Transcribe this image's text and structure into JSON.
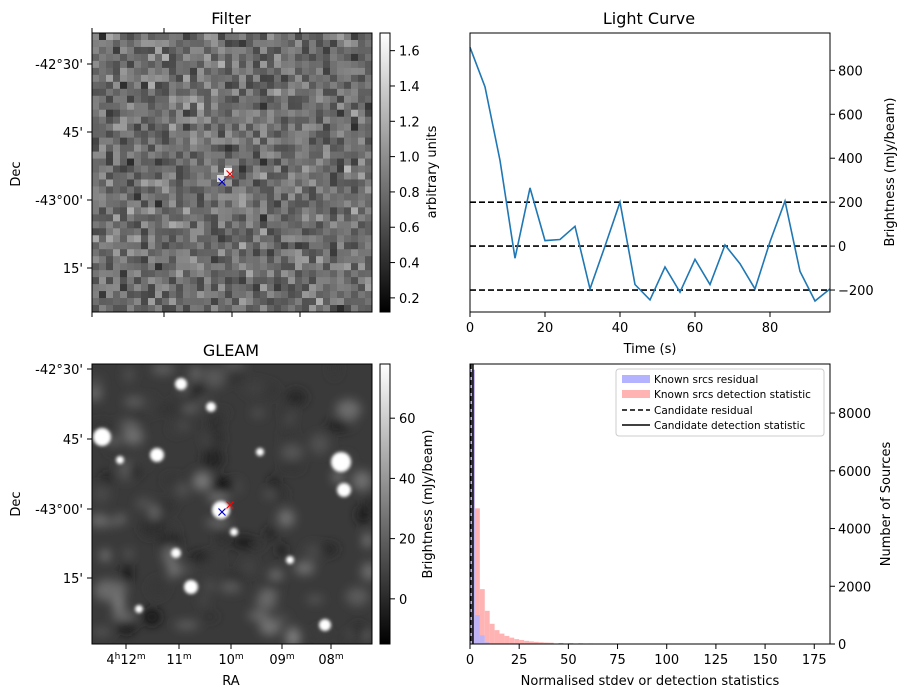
{
  "chart_data": [
    {
      "type": "heatmap",
      "title": "Filter",
      "ylabel": "Dec",
      "y_ticks": [
        "-42°30'",
        "45'",
        "-43°00'",
        "15'"
      ],
      "colorbar": {
        "label": "arbitrary units",
        "ticks": [
          "0.2",
          "0.4",
          "0.6",
          "0.8",
          "1.0",
          "1.2",
          "1.4",
          "1.6"
        ],
        "range": [
          0.12,
          1.7
        ],
        "colormap": "gray"
      },
      "markers": [
        {
          "symbol": "x",
          "color": "#ff0000"
        },
        {
          "symbol": "x",
          "color": "#0000cc"
        }
      ]
    },
    {
      "type": "line",
      "title": "Light Curve",
      "xlabel": "Time (s)",
      "ylabel": "Brightness (mJy/beam)",
      "xlim": [
        0,
        96
      ],
      "ylim": [
        -300,
        970
      ],
      "x_ticks": [
        "0",
        "20",
        "40",
        "60",
        "80"
      ],
      "y_ticks": [
        "-200",
        "0",
        "200",
        "400",
        "600",
        "800"
      ],
      "series": [
        {
          "color": "#1f77b4",
          "x": [
            0,
            4,
            8,
            12,
            16,
            20,
            24,
            28,
            32,
            36,
            40,
            44,
            48,
            52,
            56,
            60,
            64,
            68,
            72,
            76,
            80,
            84,
            88,
            92,
            96
          ],
          "values": [
            905,
            725,
            390,
            -55,
            265,
            25,
            30,
            90,
            -195,
            0,
            200,
            -175,
            -245,
            -95,
            -210,
            -60,
            -175,
            5,
            -80,
            -195,
            20,
            205,
            -115,
            -250,
            -195
          ]
        }
      ],
      "hlines": [
        {
          "y": 200,
          "style": "dashed",
          "color": "#000000"
        },
        {
          "y": 0,
          "style": "dashed",
          "color": "#000000"
        },
        {
          "y": -200,
          "style": "dashed",
          "color": "#000000"
        }
      ]
    },
    {
      "type": "heatmap",
      "title": "GLEAM",
      "xlabel": "RA",
      "ylabel": "Dec",
      "x_ticks": [
        "4h12m",
        "11m",
        "10m",
        "09m",
        "08m"
      ],
      "y_ticks": [
        "-42°30'",
        "45'",
        "-43°00'",
        "15'"
      ],
      "colorbar": {
        "label": "Brightness (mJy/beam)",
        "ticks": [
          "0",
          "20",
          "40",
          "60"
        ],
        "range": [
          -15,
          78
        ],
        "colormap": "gray"
      },
      "markers": [
        {
          "symbol": "x",
          "color": "#ff0000"
        },
        {
          "symbol": "x",
          "color": "#0000cc"
        }
      ]
    },
    {
      "type": "bar",
      "xlabel": "Normalised stdev or detection statistics",
      "ylabel": "Number of Sources",
      "xlim": [
        0,
        183
      ],
      "ylim": [
        0,
        9700
      ],
      "x_ticks": [
        "0",
        "25",
        "50",
        "75",
        "100",
        "125",
        "150",
        "175"
      ],
      "y_ticks": [
        "0",
        "2000",
        "4000",
        "6000",
        "8000"
      ],
      "legend_position": "top-right",
      "bin_width": 2.5,
      "series": [
        {
          "name": "Known srcs residual",
          "color": "#b3b3ff",
          "bin_starts": [
            0,
            2.5,
            5,
            7.5,
            10
          ],
          "values": [
            9500,
            1000,
            300,
            60,
            10
          ]
        },
        {
          "name": "Known srcs detection statistic",
          "color": "#ffb3b3",
          "bin_starts": [
            0,
            2.5,
            5,
            7.5,
            10,
            12.5,
            15,
            17.5,
            20,
            22.5,
            25,
            27.5,
            30,
            32.5,
            35,
            37.5,
            40,
            45,
            50,
            55,
            60,
            65,
            70,
            75,
            80,
            90,
            100,
            110,
            120,
            130,
            140,
            150,
            160,
            170
          ],
          "values": [
            9500,
            4700,
            1900,
            1150,
            700,
            480,
            360,
            280,
            220,
            170,
            140,
            110,
            90,
            75,
            60,
            50,
            45,
            35,
            30,
            25,
            20,
            18,
            15,
            14,
            12,
            10,
            9,
            8,
            7,
            6,
            6,
            12,
            5,
            4
          ]
        }
      ],
      "vlines": [
        {
          "name": "Candidate residual",
          "x": 0.5,
          "style": "dashed",
          "color": "#000000"
        },
        {
          "name": "Candidate detection statistic",
          "x": 1.5,
          "style": "solid",
          "color": "#000000"
        }
      ]
    }
  ]
}
